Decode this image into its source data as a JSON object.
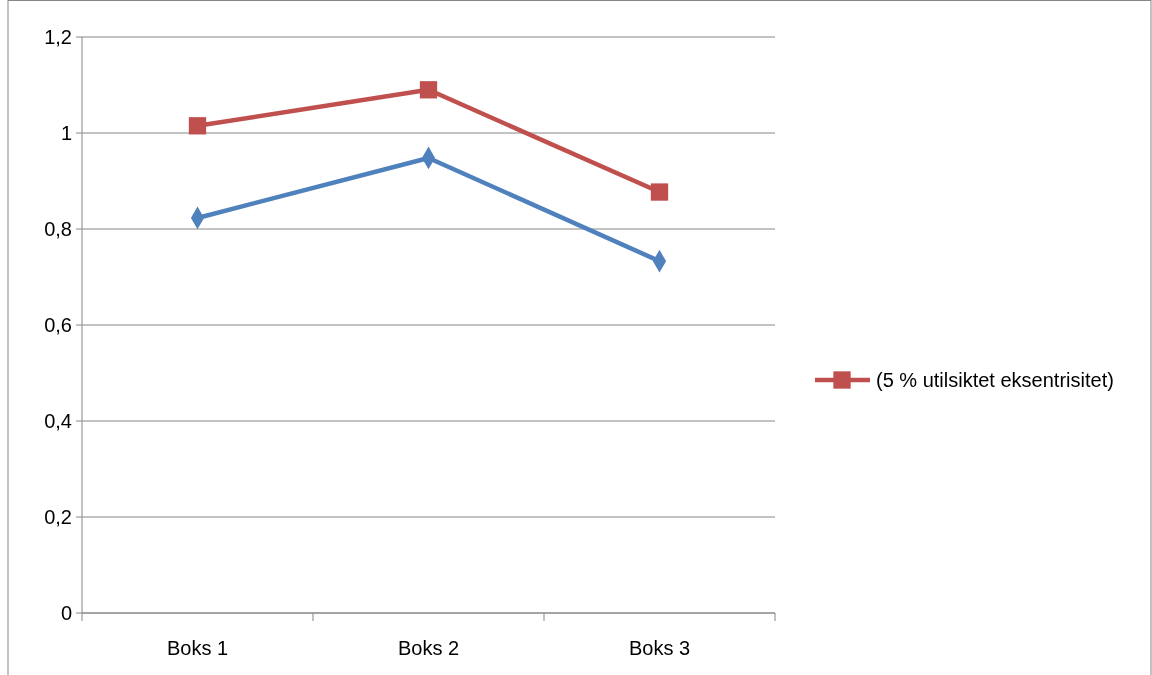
{
  "chart_data": {
    "type": "line",
    "categories": [
      "Boks 1",
      "Boks 2",
      "Boks 3"
    ],
    "series": [
      {
        "color": "#4f81bd",
        "marker": "diamond",
        "values": [
          0.823,
          0.948,
          0.733
        ]
      },
      {
        "name": "(5 % utilsiktet eksentrisitet)",
        "color": "#c0504d",
        "marker": "square",
        "values": [
          1.015,
          1.09,
          0.877
        ]
      }
    ],
    "ylim": [
      0,
      1.2
    ],
    "yticks": [
      {
        "value": 0,
        "label": "0"
      },
      {
        "value": 0.2,
        "label": "0,2"
      },
      {
        "value": 0.4,
        "label": "0,4"
      },
      {
        "value": 0.6,
        "label": "0,6"
      },
      {
        "value": 0.8,
        "label": "0,8"
      },
      {
        "value": 1,
        "label": "1"
      },
      {
        "value": 1.2,
        "label": "1,2"
      }
    ],
    "grid": "y",
    "legend": "right"
  }
}
